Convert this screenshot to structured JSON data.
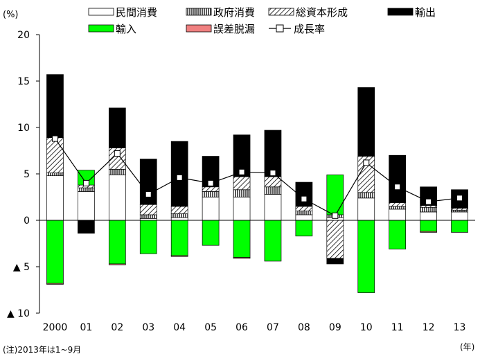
{
  "chart_data": {
    "type": "bar",
    "stacked": true,
    "y_unit_label": "(%)",
    "x_unit_label": "(年)",
    "note": "(注)2013年は1~9月",
    "categories": [
      "2000",
      "01",
      "02",
      "03",
      "04",
      "05",
      "06",
      "07",
      "08",
      "09",
      "10",
      "11",
      "12",
      "13"
    ],
    "ylim": [
      -10,
      20
    ],
    "y_ticks": [
      {
        "value": 20,
        "label": "20"
      },
      {
        "value": 15,
        "label": "15"
      },
      {
        "value": 10,
        "label": "10"
      },
      {
        "value": 5,
        "label": "5"
      },
      {
        "value": 0,
        "label": "0"
      },
      {
        "value": -5,
        "label": "▲ 5"
      },
      {
        "value": -10,
        "label": "▲ 10"
      }
    ],
    "series": [
      {
        "name": "民間消費",
        "style": "white",
        "values": [
          4.8,
          3.1,
          4.9,
          0.2,
          0.3,
          2.5,
          2.5,
          2.8,
          0.6,
          0.3,
          2.4,
          1.2,
          0.9,
          0.9
        ]
      },
      {
        "name": "政府消費",
        "style": "vlines",
        "values": [
          0.3,
          0.4,
          0.6,
          0.4,
          0.4,
          0.6,
          0.8,
          0.8,
          0.4,
          0.3,
          0.6,
          0.3,
          0.5,
          0.2
        ]
      },
      {
        "name": "総資本形成",
        "style": "hatch",
        "values": [
          3.8,
          0.3,
          2.3,
          1.1,
          0.8,
          0.5,
          1.4,
          1.1,
          0.5,
          -4.1,
          3.9,
          0.4,
          0.2,
          0.2
        ]
      },
      {
        "name": "輸出",
        "style": "black",
        "values": [
          6.8,
          -1.4,
          4.3,
          4.9,
          7.0,
          3.3,
          4.5,
          5.0,
          2.6,
          -0.6,
          7.4,
          5.1,
          2.0,
          2.0
        ]
      },
      {
        "name": "輸入",
        "style": "green",
        "values": [
          -6.8,
          1.6,
          -4.7,
          -3.6,
          -3.8,
          -2.7,
          -4.0,
          -4.4,
          -1.7,
          4.3,
          -7.8,
          -3.1,
          -1.2,
          -1.3
        ]
      },
      {
        "name": "誤差脱漏",
        "style": "pink",
        "values": [
          -0.1,
          0.0,
          -0.1,
          0.0,
          -0.1,
          0.0,
          -0.1,
          0.0,
          0.0,
          0.0,
          0.0,
          0.0,
          -0.1,
          0.0
        ]
      }
    ],
    "line": {
      "name": "成長率",
      "values": [
        8.8,
        4.0,
        7.2,
        2.8,
        4.6,
        4.0,
        5.2,
        5.1,
        2.3,
        0.5,
        6.2,
        3.6,
        2.0,
        2.4
      ]
    },
    "legend_placement": "top",
    "grid": false
  }
}
